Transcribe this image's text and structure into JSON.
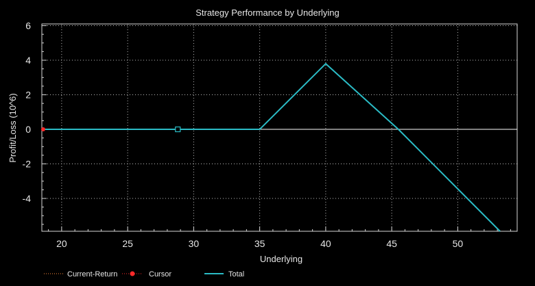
{
  "chart_data": {
    "type": "line",
    "title": "Strategy Performance by Underlying",
    "xlabel": "Underlying",
    "ylabel": "Profit/Loss (10^6)",
    "xlim": [
      18.5,
      54.5
    ],
    "ylim": [
      -5.9,
      6.1
    ],
    "x_ticks": [
      20,
      25,
      30,
      35,
      40,
      45,
      50
    ],
    "y_ticks": [
      -4,
      -2,
      0,
      2,
      4,
      6
    ],
    "grid": true,
    "legend_position": "bottom-left",
    "background_color": "#000000",
    "series": [
      {
        "name": "Total",
        "color": "#2bbcc6",
        "points": [
          [
            18.5,
            0
          ],
          [
            35,
            0
          ],
          [
            40,
            3.8
          ],
          [
            45.5,
            0
          ],
          [
            53.2,
            -5.9
          ]
        ]
      }
    ],
    "zero_line": {
      "y": 0,
      "color": "#ffffff"
    },
    "cursor_marker": {
      "x": 18.5,
      "y": 0,
      "color": "#ff2a2a"
    },
    "square_marker": {
      "x": 28.8,
      "y": 0,
      "color": "#2bbcc6"
    },
    "legend": [
      {
        "label": "Current-Return",
        "color": "#ff8c3a",
        "style": "dotted"
      },
      {
        "label": "Cursor",
        "color": "#ff2a2a",
        "style": "dot"
      },
      {
        "label": "Total",
        "color": "#2bbcc6",
        "style": "line"
      }
    ]
  }
}
